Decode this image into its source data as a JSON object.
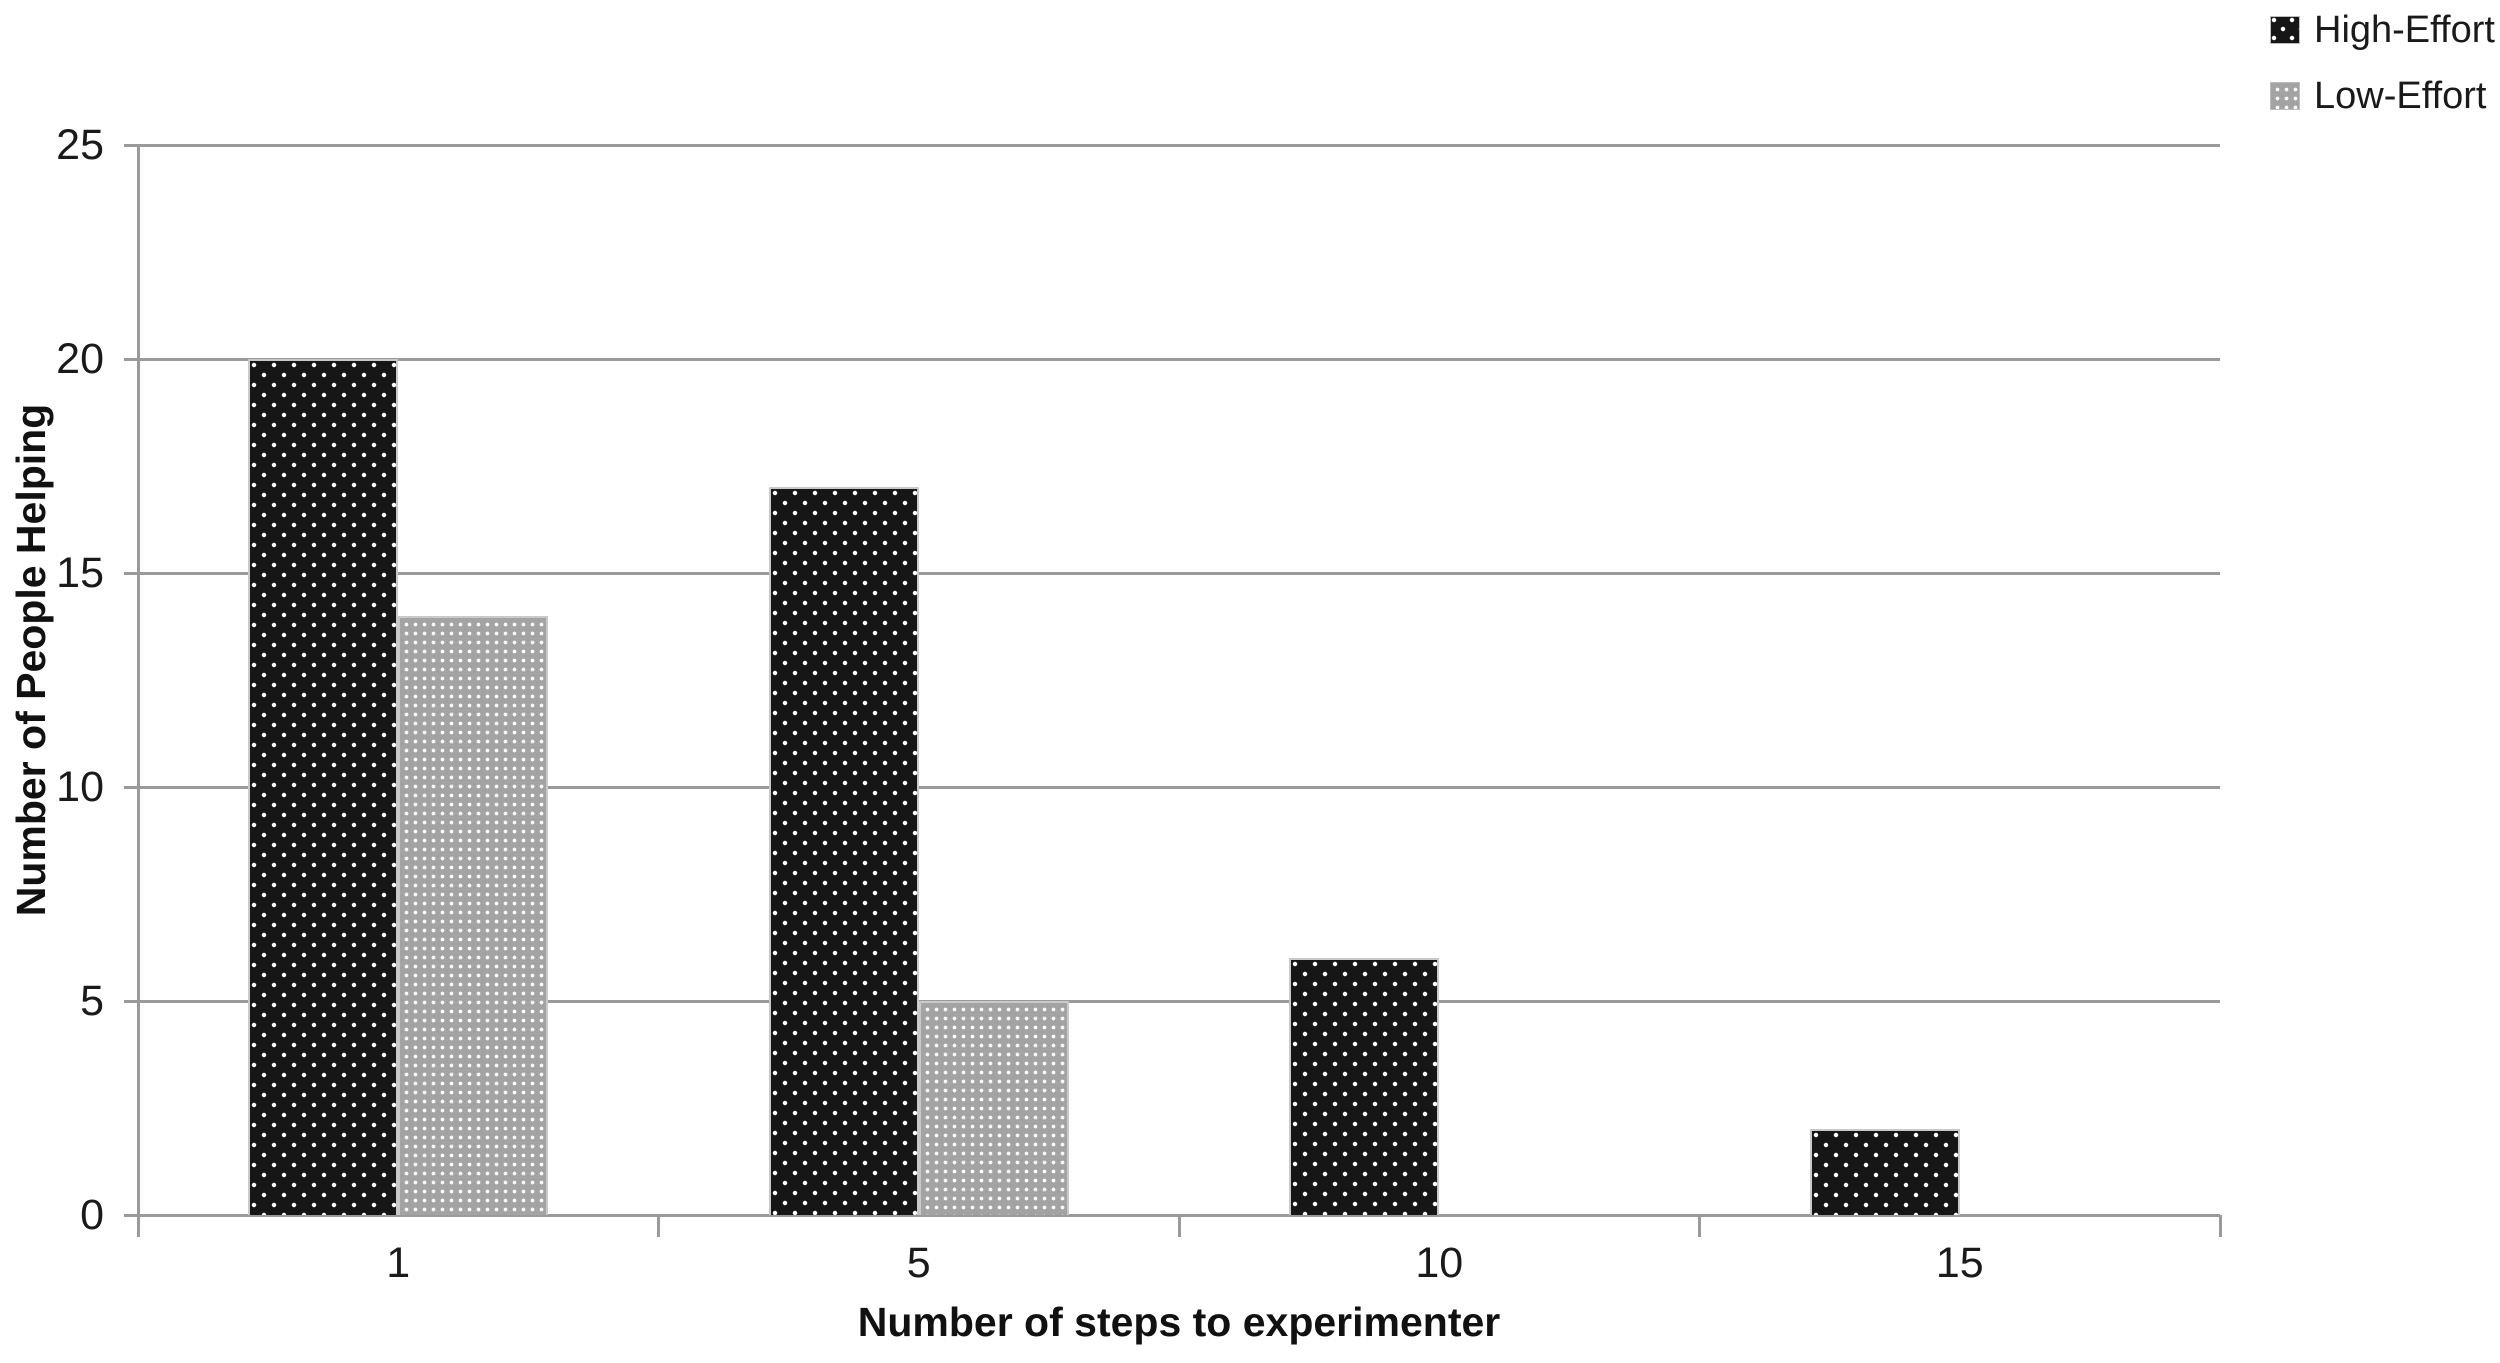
{
  "chart_data": {
    "type": "bar",
    "categories": [
      "1",
      "5",
      "10",
      "15"
    ],
    "series": [
      {
        "name": "High-Effort",
        "values": [
          20,
          17,
          6,
          2
        ],
        "color": "#161616",
        "pattern": "white-dots-diamond"
      },
      {
        "name": "Low-Effort",
        "values": [
          14,
          5,
          0,
          0
        ],
        "color": "#a3a3a3",
        "pattern": "white-dots-grid"
      }
    ],
    "title": "",
    "xlabel": "Number of steps to experimenter",
    "ylabel": "Number of People Helping",
    "ylim": [
      0,
      25
    ],
    "ytick_step": 5,
    "yticks": [
      "0",
      "5",
      "10",
      "15",
      "20",
      "25"
    ],
    "grid": "horizontal",
    "legend_position": "top-right",
    "gridline_color": "#9a9a9a",
    "axis_color": "#9a9a9a",
    "text_color": "#1a1a1a"
  }
}
